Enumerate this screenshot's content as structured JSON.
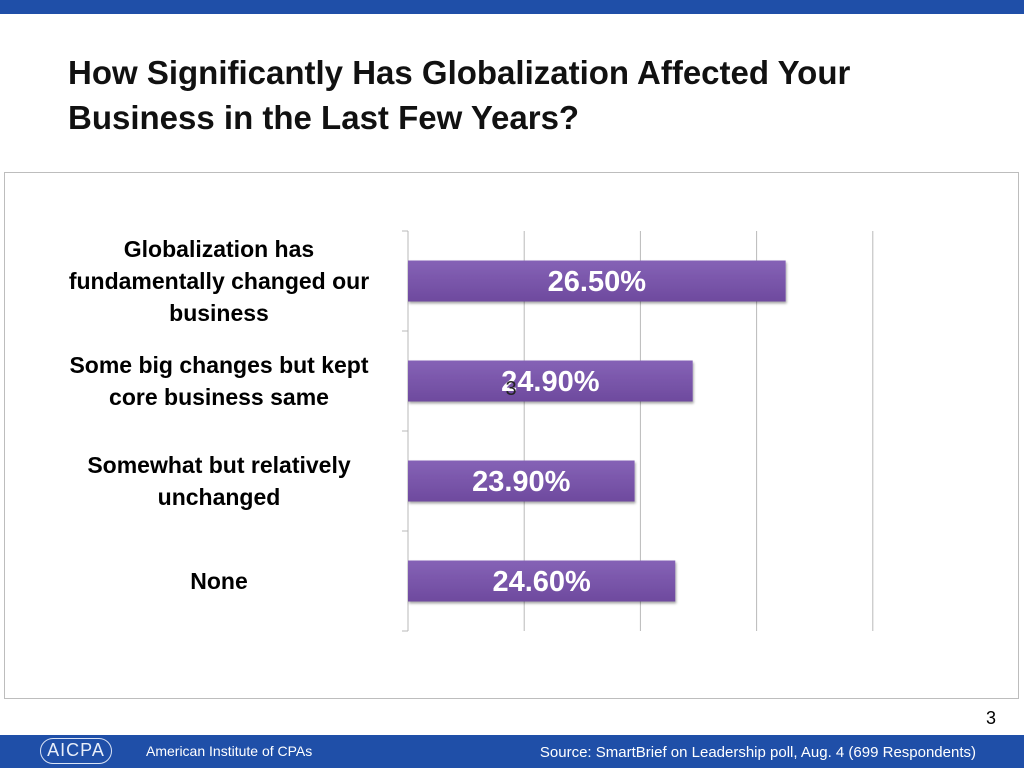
{
  "slide": {
    "title": "How Significantly Has Globalization Affected Your Business in the Last Few Years?",
    "slide_number": "3",
    "stray_digit": "3"
  },
  "footer": {
    "logo_text": "AICPA",
    "organization": "American Institute of CPAs",
    "source": "Source: SmartBrief  on Leadership poll,  Aug. 4 (699 Respondents)"
  },
  "colors": {
    "header_bar": "#1f4fa8",
    "bar_fill": "#6e4a9e",
    "bar_fill_light": "#8562b6"
  },
  "chart_data": {
    "type": "bar",
    "orientation": "horizontal",
    "categories": [
      [
        "Globalization has",
        "fundamentally changed our",
        "business"
      ],
      [
        "Some big changes but kept",
        "core business same"
      ],
      [
        "Somewhat but relatively",
        "unchanged"
      ],
      [
        "None"
      ]
    ],
    "values": [
      26.5,
      24.9,
      23.9,
      24.6
    ],
    "value_labels": [
      "26.50%",
      "24.90%",
      "23.90%",
      "24.60%"
    ],
    "xlim": [
      20,
      28
    ],
    "x_gridline_step": 2,
    "grid": true,
    "legend": "none"
  }
}
